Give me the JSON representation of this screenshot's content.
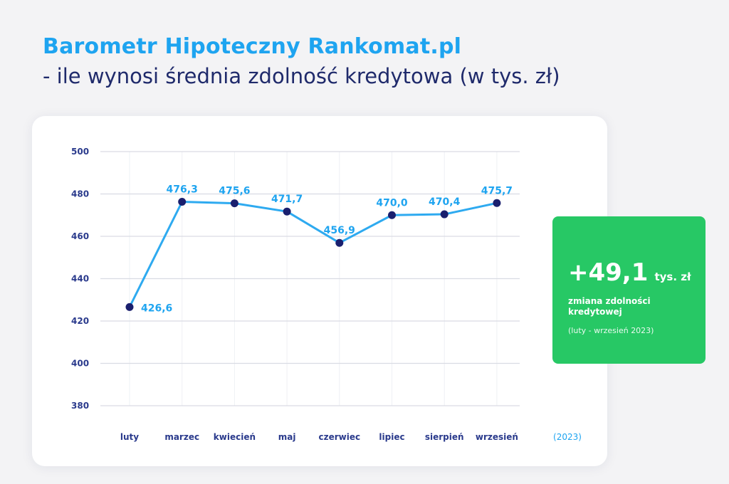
{
  "header": {
    "title": "Barometr Hipoteczny Rankomat.pl",
    "subtitle": "- ile wynosi średnia zdolność kredytowa (w tys. zł)"
  },
  "chart_data": {
    "type": "line",
    "title": "",
    "xlabel": "",
    "ylabel": "",
    "categories": [
      "luty",
      "marzec",
      "kwiecień",
      "maj",
      "czerwiec",
      "lipiec",
      "sierpień",
      "wrzesień"
    ],
    "x_extra_label": "(2023)",
    "series": [
      {
        "values": [
          426.6,
          476.3,
          475.6,
          471.7,
          456.9,
          470.0,
          470.4,
          475.7
        ],
        "labels": [
          "426,6",
          "476,3",
          "475,6",
          "471,7",
          "456,9",
          "470,0",
          "470,4",
          "475,7"
        ]
      }
    ],
    "ylim": [
      380,
      500
    ],
    "yticks": [
      500,
      480,
      460,
      440,
      420,
      400,
      380
    ],
    "grid": true,
    "colors": {
      "line": "#2eaaf0",
      "marker": "#1a1f6e",
      "grid": "#d9dbe3",
      "vertical_grid": "#eef0f4"
    }
  },
  "summary": {
    "value": "+49,1",
    "unit": "tys. zł",
    "caption": "zmiana zdolności kredytowej",
    "period": "(luty - wrzesień 2023)",
    "color": "#27c865"
  }
}
